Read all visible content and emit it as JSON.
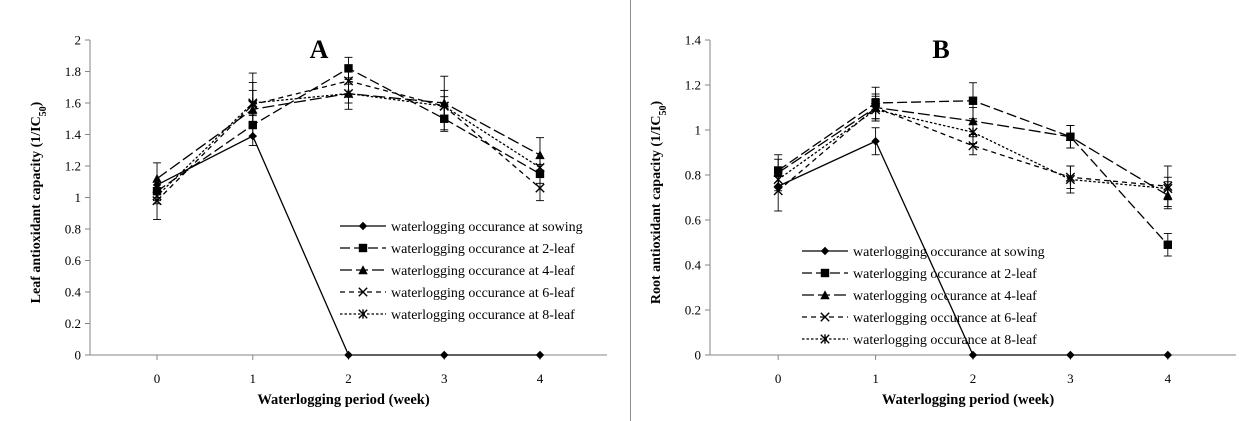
{
  "chart_data": [
    {
      "type": "line",
      "panel_letter": "A",
      "xlabel": "Waterlogging period (week)",
      "ylabel_main": "Leaf antioxidant capacity (1/IC",
      "ylabel_sub": "50",
      "ylabel_end": ")",
      "x": [
        0,
        1,
        2,
        3,
        4
      ],
      "xlim": [
        -0.7,
        4.7
      ],
      "ylim": [
        0,
        2
      ],
      "yticks": [
        0,
        0.2,
        0.4,
        0.6,
        0.8,
        1,
        1.2,
        1.4,
        1.6,
        1.8,
        2
      ],
      "ytick_labels": [
        "0",
        "0.2",
        "0.4",
        "0.6",
        "0.8",
        "1",
        "1.2",
        "1.4",
        "1.6",
        "1.8",
        "2"
      ],
      "xtick_labels": [
        "0",
        "1",
        "2",
        "3",
        "4"
      ],
      "grid": false,
      "legend_position": "bottom-right",
      "series": [
        {
          "name": "waterlogging occurance at sowing",
          "values": [
            1.08,
            1.39,
            0,
            0,
            0
          ],
          "errors": [
            0,
            0,
            0,
            0,
            0
          ]
        },
        {
          "name": "waterlogging occurance at 2-leaf",
          "values": [
            1.04,
            1.46,
            1.82,
            1.5,
            1.15
          ],
          "errors": [
            0.06,
            0.07,
            0.07,
            0.08,
            0.06
          ]
        },
        {
          "name": "waterlogging occurance at 4-leaf",
          "values": [
            1.12,
            1.56,
            1.66,
            1.6,
            1.27
          ],
          "errors": [
            0.1,
            0.23,
            0.1,
            0.17,
            0.11
          ]
        },
        {
          "name": "waterlogging occurance at 6-leaf",
          "values": [
            0.98,
            1.59,
            1.74,
            1.58,
            1.06
          ],
          "errors": [
            0.12,
            0.14,
            0.09,
            0.1,
            0.08
          ]
        },
        {
          "name": "waterlogging occurance at 8-leaf",
          "values": [
            1.01,
            1.6,
            1.66,
            1.58,
            1.19
          ],
          "errors": [
            0.05,
            0.08,
            0.06,
            0.06,
            0.06
          ]
        }
      ]
    },
    {
      "type": "line",
      "panel_letter": "B",
      "xlabel": "Waterlogging period (week)",
      "ylabel_main": "Root antioxidant capacity (1/IC",
      "ylabel_sub": "50",
      "ylabel_end": ")",
      "x": [
        0,
        1,
        2,
        3,
        4
      ],
      "xlim": [
        -0.7,
        4.7
      ],
      "ylim": [
        0,
        1.4
      ],
      "yticks": [
        0,
        0.2,
        0.4,
        0.6,
        0.8,
        1,
        1.2,
        1.4
      ],
      "ytick_labels": [
        "0",
        "0.2",
        "0.4",
        "0.6",
        "0.8",
        "1",
        "1.2",
        "1.4"
      ],
      "xtick_labels": [
        "0",
        "1",
        "2",
        "3",
        "4"
      ],
      "grid": false,
      "legend_position": "bottom-center",
      "series": [
        {
          "name": "waterlogging occurance at sowing",
          "values": [
            0.75,
            0.95,
            0,
            0,
            0
          ],
          "errors": [
            0,
            0.06,
            0,
            0,
            0
          ]
        },
        {
          "name": "waterlogging occurance at 2-leaf",
          "values": [
            0.82,
            1.12,
            1.13,
            0.97,
            0.49
          ],
          "errors": [
            0.07,
            0.07,
            0.08,
            0.05,
            0.05
          ]
        },
        {
          "name": "waterlogging occurance at 4-leaf",
          "values": [
            0.81,
            1.1,
            1.04,
            0.97,
            0.71
          ],
          "errors": [
            0.06,
            0.05,
            0.06,
            0.05,
            0.06
          ]
        },
        {
          "name": "waterlogging occurance at 6-leaf",
          "values": [
            0.73,
            1.1,
            0.93,
            0.79,
            0.75
          ],
          "errors": [
            0.09,
            0.06,
            0.04,
            0.05,
            0.09
          ]
        },
        {
          "name": "waterlogging occurance at 8-leaf",
          "values": [
            0.78,
            1.09,
            0.99,
            0.78,
            0.74
          ],
          "errors": [
            0.05,
            0.05,
            0.05,
            0.06,
            0.05
          ]
        }
      ]
    }
  ]
}
